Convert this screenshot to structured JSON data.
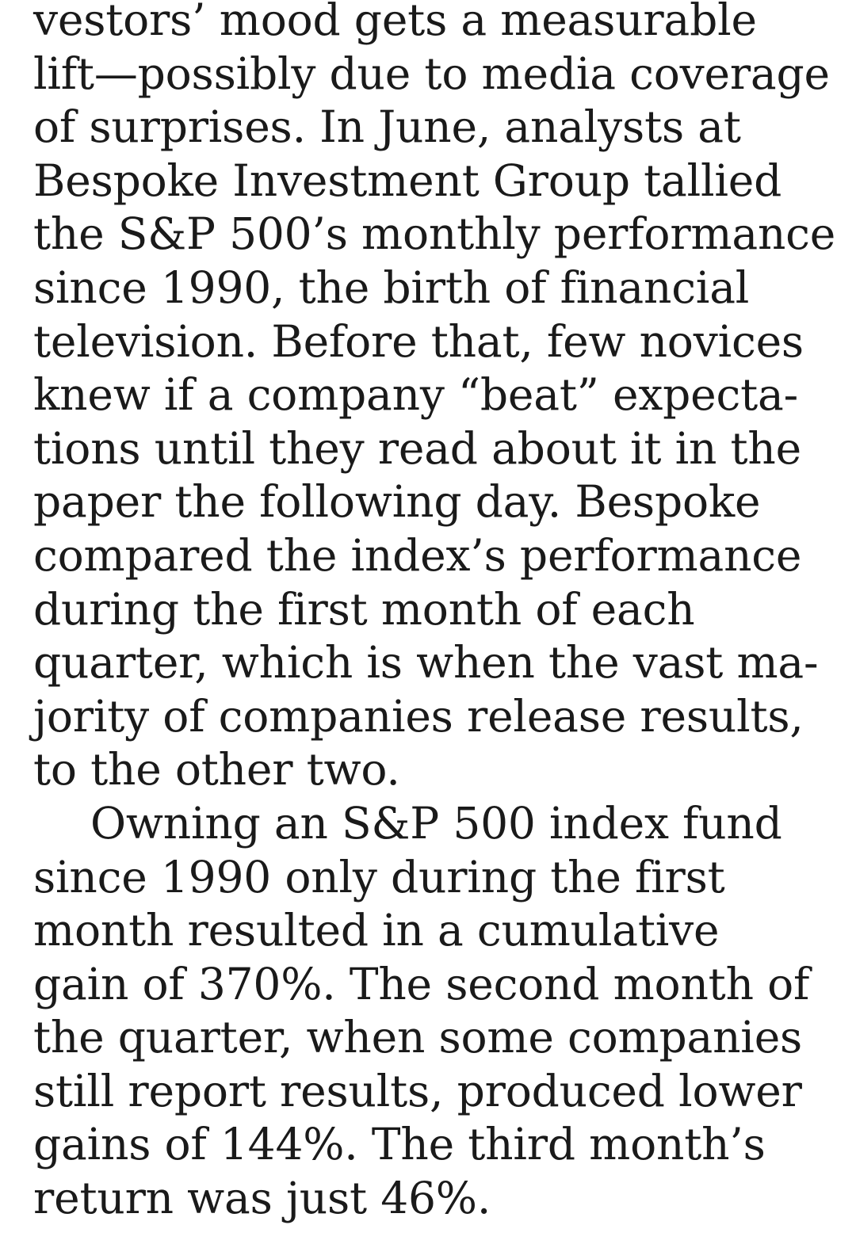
{
  "paragraphs": [
    {
      "indent": false,
      "lines": [
        "vestors’ mood gets a measurable",
        "lift—possibly due to media coverage",
        "of surprises. In June, analysts at",
        "Bespoke Investment Group tallied",
        "the S&P 500’s monthly performance",
        "since 1990, the birth of financial",
        "television. Before that, few novices",
        "knew if a company “beat” expecta-",
        "tions until they read about it in the",
        "paper the following day. Bespoke",
        "compared the index’s performance",
        "during the first month of each",
        "quarter, which is when the vast ma-",
        "jority of companies release results,",
        "to the other two."
      ]
    },
    {
      "indent": true,
      "lines": [
        "Owning an S&P 500 index fund",
        "since 1990 only during the first",
        "month resulted in a cumulative",
        "gain of 370%. The second month of",
        "the quarter, when some companies",
        "still report results, produced lower",
        "gains of 144%. The third month’s",
        "return was just 46%."
      ]
    }
  ]
}
